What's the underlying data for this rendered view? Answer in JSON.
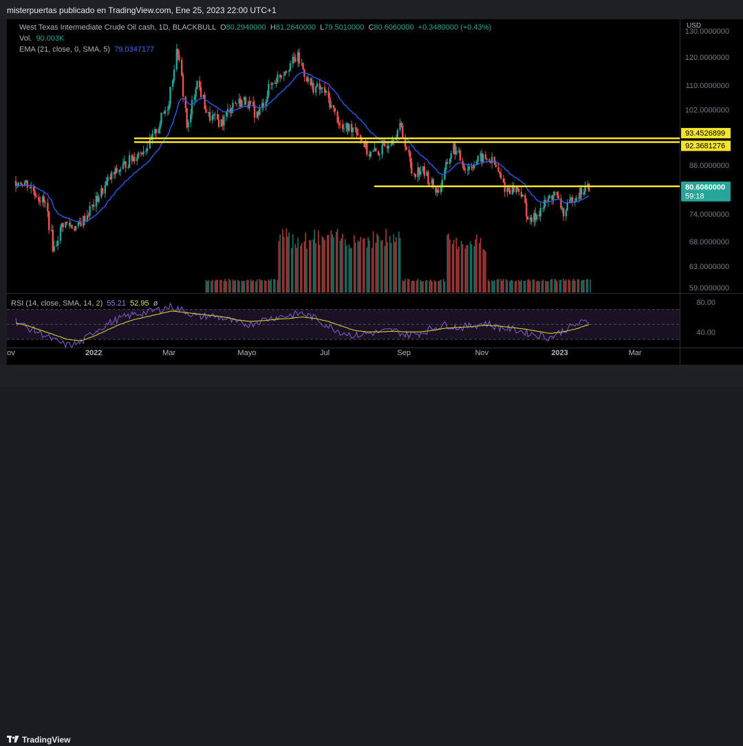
{
  "header": {
    "title": "misterpuertas publicado en TradingView.com, Ene 25, 2023 22:00 UTC+1"
  },
  "legend": {
    "symbol": "West Texas Intermediate Crude Oil cash, 1D, BLACKBULL",
    "o_label": "O",
    "o": "80.2940000",
    "h_label": "H",
    "h": "81.2640000",
    "l_label": "L",
    "l": "79.5010000",
    "c_label": "C",
    "c": "80.6060000",
    "change": "+0.3480000 (+0.43%)",
    "vol_label": "Vol.",
    "vol": "90.003K",
    "ema_label": "EMA (21, close, 0, SMA, 5)",
    "ema": "79.0347177",
    "rsi_label": "RSI (14, close, SMA, 14, 2)",
    "rsi": "55.21",
    "rsi_ma": "52.95",
    "rsi_extra": "ø"
  },
  "chart_data": {
    "type": "candlestick",
    "currency_label": "USD",
    "price_axis": {
      "scale": "log",
      "ticks": [
        "130.0000000",
        "120.0000000",
        "110.0000000",
        "102.0000000",
        "86.0000000",
        "74.0000000",
        "68.0000000",
        "63.0000000",
        "59.0000000"
      ],
      "ylim": [
        58,
        132
      ]
    },
    "time_axis": {
      "ticks": [
        "ov",
        "2022",
        "Mar",
        "Mayo",
        "Jul",
        "Sep",
        "Nov",
        "2023",
        "Mar"
      ]
    },
    "horizontal_lines": [
      {
        "value": 93.4526899,
        "label": "93.4526899",
        "color": "#f5e52a"
      },
      {
        "value": 92.3681276,
        "label": "92.3681276",
        "color": "#f5e52a"
      },
      {
        "value": 80.606,
        "label": "80.6060000",
        "color": "#f5e52a"
      }
    ],
    "last_price": {
      "value": 80.606,
      "label": "80.6060000",
      "countdown": "59:18",
      "color": "#26a69a"
    },
    "price_path": [
      [
        "2021-11-01",
        82
      ],
      [
        "2021-11-10",
        81.5
      ],
      [
        "2021-11-25",
        76
      ],
      [
        "2021-12-01",
        66
      ],
      [
        "2021-12-08",
        72
      ],
      [
        "2021-12-20",
        71
      ],
      [
        "2022-01-01",
        76
      ],
      [
        "2022-01-15",
        83
      ],
      [
        "2022-02-01",
        88
      ],
      [
        "2022-02-15",
        92
      ],
      [
        "2022-03-01",
        104
      ],
      [
        "2022-03-08",
        124
      ],
      [
        "2022-03-16",
        95
      ],
      [
        "2022-03-23",
        112
      ],
      [
        "2022-04-01",
        100
      ],
      [
        "2022-04-12",
        98
      ],
      [
        "2022-04-20",
        104
      ],
      [
        "2022-05-01",
        105
      ],
      [
        "2022-05-10",
        100
      ],
      [
        "2022-05-20",
        110
      ],
      [
        "2022-06-01",
        116
      ],
      [
        "2022-06-10",
        120
      ],
      [
        "2022-06-20",
        110
      ],
      [
        "2022-07-01",
        108
      ],
      [
        "2022-07-08",
        102
      ],
      [
        "2022-07-15",
        96
      ],
      [
        "2022-07-25",
        97
      ],
      [
        "2022-08-05",
        89
      ],
      [
        "2022-08-15",
        90
      ],
      [
        "2022-08-30",
        97
      ],
      [
        "2022-09-08",
        84
      ],
      [
        "2022-09-15",
        85
      ],
      [
        "2022-09-28",
        79
      ],
      [
        "2022-10-10",
        91
      ],
      [
        "2022-10-20",
        85
      ],
      [
        "2022-11-01",
        88
      ],
      [
        "2022-11-10",
        87
      ],
      [
        "2022-11-20",
        80
      ],
      [
        "2022-12-01",
        80
      ],
      [
        "2022-12-09",
        72
      ],
      [
        "2022-12-20",
        76
      ],
      [
        "2022-12-28",
        79
      ],
      [
        "2023-01-05",
        74
      ],
      [
        "2023-01-12",
        78
      ],
      [
        "2023-01-25",
        80.6
      ]
    ],
    "ema_color": "#2962ff",
    "rsi": {
      "ylim": [
        20,
        90
      ],
      "ticks": [
        "80.00",
        "40.00"
      ],
      "bands": [
        70,
        50,
        30
      ],
      "line_color": "#7e57c2",
      "ma_color": "#d4d429",
      "values": [
        55,
        45,
        38,
        28,
        22,
        25,
        40,
        50,
        58,
        63,
        66,
        70,
        74,
        68,
        60,
        62,
        58,
        52,
        50,
        56,
        60,
        62,
        65,
        58,
        48,
        40,
        35,
        38,
        40,
        42,
        36,
        38,
        45,
        50,
        46,
        48,
        52,
        46,
        44,
        40,
        36,
        32,
        42,
        50,
        55
      ],
      "ma_values": [
        52,
        48,
        42,
        36,
        30,
        28,
        34,
        42,
        50,
        56,
        60,
        64,
        68,
        66,
        64,
        62,
        60,
        56,
        54,
        55,
        57,
        58,
        60,
        58,
        54,
        48,
        42,
        40,
        40,
        41,
        40,
        40,
        42,
        45,
        46,
        47,
        49,
        48,
        46,
        44,
        41,
        38,
        40,
        44,
        50
      ]
    },
    "volume": {
      "values_k": [
        0,
        0,
        0,
        0,
        0,
        0,
        0,
        0,
        0,
        0,
        0,
        0,
        0,
        0,
        0,
        0,
        0,
        0,
        0,
        0,
        0,
        0,
        0,
        0,
        0,
        0,
        0,
        0,
        0,
        18,
        18,
        18,
        18,
        18,
        18,
        18,
        18,
        18,
        18,
        18,
        18,
        18,
        18,
        18,
        18,
        18,
        18,
        18,
        18,
        18,
        18,
        18,
        18,
        18,
        18,
        18,
        18,
        18,
        18,
        18,
        18,
        18,
        18,
        18,
        18,
        18,
        18,
        18,
        18,
        18,
        18,
        18,
        18,
        18,
        18,
        18,
        18,
        18,
        18,
        18,
        18,
        18,
        18,
        18,
        18,
        18,
        18,
        18,
        18,
        18,
        18,
        18,
        18,
        18,
        18,
        18,
        18,
        18,
        18,
        18,
        18,
        18,
        18,
        18,
        18,
        18,
        18,
        18,
        18,
        18,
        18,
        18,
        18,
        18,
        18,
        18,
        18,
        18,
        18,
        18,
        18,
        18,
        18,
        18,
        18,
        18,
        18,
        18,
        18,
        18,
        18,
        18,
        18,
        18,
        18,
        18,
        18,
        18,
        18,
        18,
        18,
        18,
        18,
        18,
        18,
        18,
        18,
        18,
        18,
        18,
        18,
        18,
        18,
        18,
        18,
        18,
        18,
        18,
        18,
        18,
        18,
        18,
        18,
        18,
        18,
        18,
        18,
        18,
        18,
        18,
        18,
        18,
        18,
        18,
        18,
        18,
        18,
        18,
        18,
        18,
        18,
        18,
        18,
        18,
        18,
        18,
        18,
        18,
        18,
        18,
        18,
        18,
        18,
        18,
        18,
        18,
        18,
        18,
        18,
        18,
        18,
        18,
        18,
        18,
        18,
        18,
        18,
        18,
        18,
        18,
        18,
        18,
        18,
        18,
        18,
        18,
        18,
        18,
        18,
        18,
        18,
        18,
        18,
        18,
        18,
        18,
        18,
        18,
        18,
        18,
        18,
        18,
        18,
        18,
        18,
        18,
        18,
        18,
        18,
        18,
        18,
        18,
        18,
        18,
        18,
        18,
        18,
        18,
        18,
        18,
        18,
        18,
        18,
        18,
        18,
        18,
        18,
        18,
        18,
        18,
        18,
        18,
        18,
        18,
        18,
        18,
        18,
        18,
        18,
        18,
        18,
        18,
        18,
        18,
        18,
        18,
        18,
        18,
        18,
        18,
        18,
        18,
        18,
        18,
        18,
        18,
        18,
        18,
        18,
        18,
        18,
        18,
        18,
        18,
        18,
        18,
        18,
        18,
        18,
        18,
        18,
        18,
        18,
        18,
        18,
        18,
        18,
        18,
        18,
        18,
        18,
        18,
        18,
        18,
        18,
        18,
        18,
        18,
        18,
        18,
        18,
        18,
        18,
        18,
        18,
        18,
        18,
        18,
        18,
        18
      ],
      "high_blocks": [
        {
          "from": "2022-05-26",
          "to": "2022-08-30",
          "level_k": 85
        },
        {
          "from": "2022-10-05",
          "to": "2022-11-05",
          "level_k": 80
        }
      ]
    }
  },
  "footer": {
    "brand": "TradingView"
  }
}
